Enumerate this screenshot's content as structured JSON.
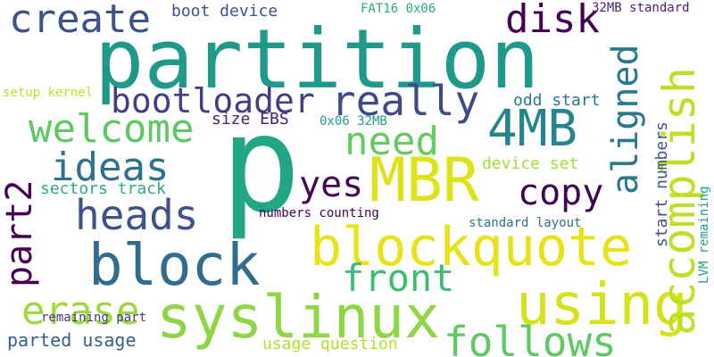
{
  "words": [
    {
      "text": "p",
      "color": "#22a784"
    },
    {
      "text": "partition",
      "color": "#1f9a8a"
    },
    {
      "text": "MBR",
      "color": "#dde318"
    },
    {
      "text": "syslinux",
      "color": "#8ed645"
    },
    {
      "text": "blockquote",
      "color": "#e6e419"
    },
    {
      "text": "block",
      "color": "#2f6c8e"
    },
    {
      "text": "using",
      "color": "#d5e21a"
    },
    {
      "text": "4MB",
      "color": "#25858e"
    },
    {
      "text": "create",
      "color": "#3b528b"
    },
    {
      "text": "bootloader",
      "color": "#433e85"
    },
    {
      "text": "really",
      "color": "#3e4a89"
    },
    {
      "text": "welcome",
      "color": "#5ec962"
    },
    {
      "text": "accomplish",
      "color": "#bddf26"
    },
    {
      "text": "aligned",
      "color": "#2a788e"
    },
    {
      "text": "ideas",
      "color": "#2c728e"
    },
    {
      "text": "heads",
      "color": "#3b528b"
    },
    {
      "text": "follows",
      "color": "#5ec962"
    },
    {
      "text": "need",
      "color": "#65cb5e"
    },
    {
      "text": "front",
      "color": "#3dbc74"
    },
    {
      "text": "erase",
      "color": "#9bd93c"
    },
    {
      "text": "disk",
      "color": "#440154"
    },
    {
      "text": "copy",
      "color": "#3e0751"
    },
    {
      "text": "part2",
      "color": "#440154"
    },
    {
      "text": "yes",
      "color": "#450559"
    },
    {
      "text": "parted usage",
      "color": "#355f8d"
    },
    {
      "text": "usage question",
      "color": "#b5de2b"
    },
    {
      "text": "sectors track",
      "color": "#26ad81"
    },
    {
      "text": "boot device",
      "color": "#3b528b"
    },
    {
      "text": "size EBS",
      "color": "#482173"
    },
    {
      "text": "odd start",
      "color": "#2a788e"
    },
    {
      "text": "device set",
      "color": "#a5db36"
    },
    {
      "text": "start numbers",
      "color": "#3b528b"
    },
    {
      "text": "numbers counting",
      "color": "#440154"
    },
    {
      "text": "standard layout",
      "color": "#2c728e"
    },
    {
      "text": "remaining part",
      "color": "#46337e"
    },
    {
      "text": "0x06 32MB",
      "color": "#1f9e89"
    },
    {
      "text": "FAT16 0x06",
      "color": "#25ab82"
    },
    {
      "text": "32MB standard",
      "color": "#482475"
    },
    {
      "text": "setup kernel",
      "color": "#c2df23"
    },
    {
      "text": "LVM remaining",
      "color": "#1fa088"
    }
  ]
}
